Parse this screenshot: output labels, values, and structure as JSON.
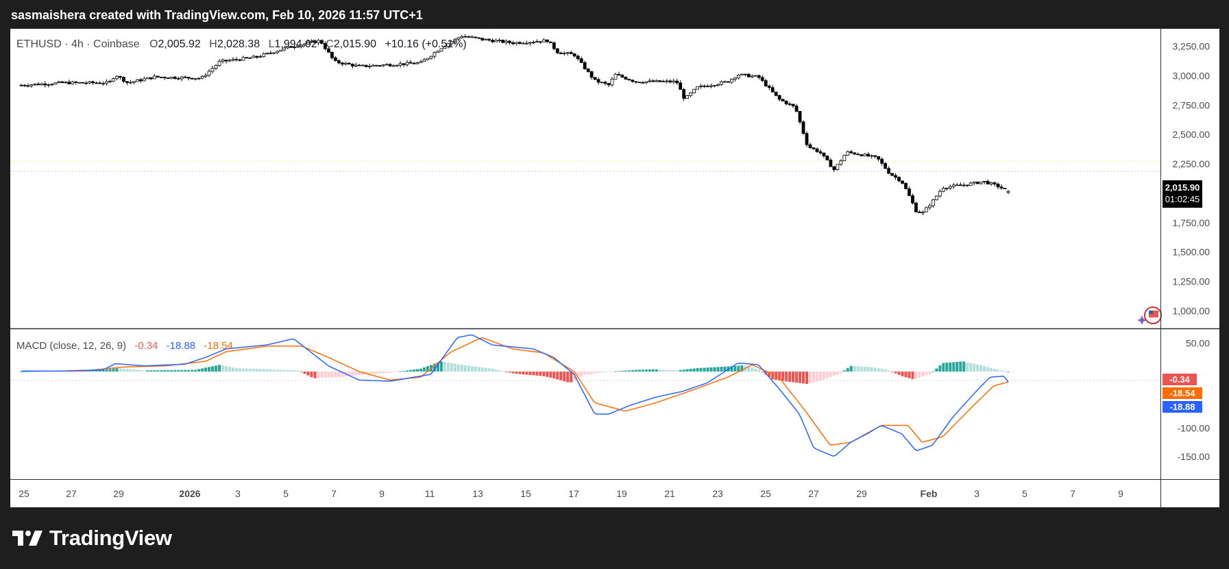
{
  "header": {
    "caption": "sasmaishera created with TradingView.com, Feb 10, 2026 11:57 UTC+1"
  },
  "legend": {
    "symbol": "ETHUSD",
    "sep1": " · ",
    "interval": "4h",
    "sep2": " · ",
    "exchange": "Coinbase",
    "open_label": "O",
    "open": "2,005.92",
    "high_label": "H",
    "high": "2,028.38",
    "low_label": "L",
    "low": "1,994.02",
    "close_label": "C",
    "close": "2,015.90",
    "change": "+10.16 (+0.51%)"
  },
  "last_price": {
    "value": "2,015.90",
    "countdown": "01:02:45"
  },
  "macd_legend": {
    "label": "MACD (close, 12, 26, 9)",
    "histogram": "-0.34",
    "macd": "-18.88",
    "signal": "-18.54"
  },
  "brand": {
    "name": "TradingView"
  },
  "colors": {
    "up": "#26a69a",
    "down": "#ef5350",
    "up_light": "#b2dfdb",
    "down_light": "#ffcdd2",
    "macd_line": "#2962ff",
    "signal_line": "#ff6d00",
    "candle": "#000000",
    "last_price_bg": "#000000",
    "grid": "#e0e3eb",
    "text": "#131722",
    "label_text": "#4a4a4a"
  },
  "chart_data": [
    {
      "type": "candlestick",
      "symbol": "ETHUSD",
      "interval": "4h",
      "exchange": "Coinbase",
      "price_axis_ticks": [
        "3,250.00",
        "3,000.00",
        "2,750.00",
        "2,500.00",
        "2,250.00",
        "1,750.00",
        "1,500.00",
        "1,250.00",
        "1,000.00"
      ],
      "price_axis_values": [
        3250,
        3000,
        2750,
        2500,
        2250,
        1750,
        1500,
        1250,
        1000
      ],
      "ylim": [
        850,
        3400
      ],
      "time_axis_labels": [
        "25",
        "27",
        "29",
        "2026",
        "3",
        "5",
        "7",
        "9",
        "11",
        "13",
        "15",
        "17",
        "19",
        "21",
        "23",
        "25",
        "27",
        "29",
        "Feb",
        "3",
        "5",
        "7",
        "9"
      ],
      "close_path": [
        {
          "t": 0,
          "c": 2920
        },
        {
          "t": 2,
          "c": 2940
        },
        {
          "t": 4.3,
          "c": 2940
        },
        {
          "t": 4.6,
          "c": 3010
        },
        {
          "t": 5.2,
          "c": 2940
        },
        {
          "t": 6.5,
          "c": 2990
        },
        {
          "t": 8.8,
          "c": 2980
        },
        {
          "t": 9.7,
          "c": 3120
        },
        {
          "t": 11.5,
          "c": 3160
        },
        {
          "t": 13,
          "c": 3240
        },
        {
          "t": 14.6,
          "c": 3300
        },
        {
          "t": 15.3,
          "c": 3120
        },
        {
          "t": 16.5,
          "c": 3080
        },
        {
          "t": 17.5,
          "c": 3090
        },
        {
          "t": 19.5,
          "c": 3110
        },
        {
          "t": 20.6,
          "c": 3250
        },
        {
          "t": 21.5,
          "c": 3340
        },
        {
          "t": 22.5,
          "c": 3310
        },
        {
          "t": 24,
          "c": 3280
        },
        {
          "t": 25.7,
          "c": 3300
        },
        {
          "t": 26.2,
          "c": 3200
        },
        {
          "t": 27,
          "c": 3180
        },
        {
          "t": 28,
          "c": 2960
        },
        {
          "t": 28.7,
          "c": 2920
        },
        {
          "t": 29,
          "c": 3010
        },
        {
          "t": 30,
          "c": 2950
        },
        {
          "t": 32,
          "c": 2950
        },
        {
          "t": 32.4,
          "c": 2800
        },
        {
          "t": 33,
          "c": 2900
        },
        {
          "t": 34.5,
          "c": 2950
        },
        {
          "t": 35,
          "c": 3010
        },
        {
          "t": 36,
          "c": 2990
        },
        {
          "t": 37,
          "c": 2800
        },
        {
          "t": 37.8,
          "c": 2730
        },
        {
          "t": 38,
          "c": 2620
        },
        {
          "t": 38.4,
          "c": 2400
        },
        {
          "t": 39,
          "c": 2350
        },
        {
          "t": 39.7,
          "c": 2200
        },
        {
          "t": 40.3,
          "c": 2350
        },
        {
          "t": 41,
          "c": 2330
        },
        {
          "t": 41.8,
          "c": 2300
        },
        {
          "t": 42.4,
          "c": 2170
        },
        {
          "t": 43,
          "c": 2100
        },
        {
          "t": 43.3,
          "c": 2000
        },
        {
          "t": 43.7,
          "c": 1850
        },
        {
          "t": 44,
          "c": 1830
        },
        {
          "t": 44.5,
          "c": 1930
        },
        {
          "t": 45,
          "c": 2050
        },
        {
          "t": 46,
          "c": 2070
        },
        {
          "t": 47,
          "c": 2100
        },
        {
          "t": 47.7,
          "c": 2060
        },
        {
          "t": 48.2,
          "c": 2015.9
        }
      ],
      "last_candle": {
        "open": 2005.92,
        "high": 2028.38,
        "low": 1994.02,
        "close": 2015.9
      }
    },
    {
      "type": "macd",
      "title": "MACD (close, 12, 26, 9)",
      "axis_ticks": [
        "50.00",
        "-100.00",
        "-150.00"
      ],
      "axis_values": [
        50,
        -100,
        -150
      ],
      "ylim": [
        -190,
        75
      ],
      "macd_path": [
        {
          "t": 0,
          "v": 1
        },
        {
          "t": 2,
          "v": 1
        },
        {
          "t": 4,
          "v": 3
        },
        {
          "t": 4.6,
          "v": 14
        },
        {
          "t": 6,
          "v": 10
        },
        {
          "t": 8,
          "v": 13
        },
        {
          "t": 9,
          "v": 25
        },
        {
          "t": 10,
          "v": 40
        },
        {
          "t": 12,
          "v": 47
        },
        {
          "t": 13.3,
          "v": 58
        },
        {
          "t": 15,
          "v": 10
        },
        {
          "t": 16.5,
          "v": -15
        },
        {
          "t": 18,
          "v": -17
        },
        {
          "t": 20,
          "v": -5
        },
        {
          "t": 20.5,
          "v": 20
        },
        {
          "t": 21.3,
          "v": 60
        },
        {
          "t": 22,
          "v": 65
        },
        {
          "t": 23,
          "v": 47
        },
        {
          "t": 25,
          "v": 40
        },
        {
          "t": 26,
          "v": 25
        },
        {
          "t": 27,
          "v": -5
        },
        {
          "t": 28,
          "v": -75
        },
        {
          "t": 28.7,
          "v": -75
        },
        {
          "t": 29.7,
          "v": -60
        },
        {
          "t": 31,
          "v": -45
        },
        {
          "t": 32.3,
          "v": -35
        },
        {
          "t": 33.5,
          "v": -20
        },
        {
          "t": 35,
          "v": 15
        },
        {
          "t": 36,
          "v": 12
        },
        {
          "t": 37,
          "v": -30
        },
        {
          "t": 38,
          "v": -75
        },
        {
          "t": 38.7,
          "v": -135
        },
        {
          "t": 39.7,
          "v": -150
        },
        {
          "t": 40.5,
          "v": -125
        },
        {
          "t": 41.3,
          "v": -110
        },
        {
          "t": 42,
          "v": -95
        },
        {
          "t": 43,
          "v": -110
        },
        {
          "t": 43.7,
          "v": -140
        },
        {
          "t": 44.5,
          "v": -130
        },
        {
          "t": 45.5,
          "v": -80
        },
        {
          "t": 46.5,
          "v": -40
        },
        {
          "t": 47.3,
          "v": -10
        },
        {
          "t": 48,
          "v": -8
        },
        {
          "t": 48.2,
          "v": -18.88
        }
      ],
      "signal_path": [
        {
          "t": 0,
          "v": 1
        },
        {
          "t": 3,
          "v": 1
        },
        {
          "t": 5,
          "v": 8
        },
        {
          "t": 7,
          "v": 10
        },
        {
          "t": 9,
          "v": 18
        },
        {
          "t": 10,
          "v": 35
        },
        {
          "t": 12,
          "v": 45
        },
        {
          "t": 13.7,
          "v": 45
        },
        {
          "t": 15,
          "v": 25
        },
        {
          "t": 16.5,
          "v": 0
        },
        {
          "t": 18,
          "v": -15
        },
        {
          "t": 19.5,
          "v": -10
        },
        {
          "t": 21,
          "v": 35
        },
        {
          "t": 22.5,
          "v": 60
        },
        {
          "t": 24,
          "v": 40
        },
        {
          "t": 25.5,
          "v": 33
        },
        {
          "t": 27,
          "v": 0
        },
        {
          "t": 28,
          "v": -55
        },
        {
          "t": 29.5,
          "v": -70
        },
        {
          "t": 31,
          "v": -55
        },
        {
          "t": 33,
          "v": -30
        },
        {
          "t": 34.5,
          "v": -10
        },
        {
          "t": 35.7,
          "v": 12
        },
        {
          "t": 37,
          "v": -10
        },
        {
          "t": 38.3,
          "v": -70
        },
        {
          "t": 39.5,
          "v": -130
        },
        {
          "t": 40.5,
          "v": -125
        },
        {
          "t": 42,
          "v": -95
        },
        {
          "t": 43.3,
          "v": -95
        },
        {
          "t": 44,
          "v": -125
        },
        {
          "t": 45,
          "v": -115
        },
        {
          "t": 46.5,
          "v": -60
        },
        {
          "t": 47.5,
          "v": -25
        },
        {
          "t": 48.2,
          "v": -18.54
        }
      ],
      "histogram_path": [
        {
          "t": 0,
          "v": 0
        },
        {
          "t": 4,
          "v": 3
        },
        {
          "t": 4.7,
          "v": 6
        },
        {
          "t": 6,
          "v": 2
        },
        {
          "t": 8.5,
          "v": 3
        },
        {
          "t": 9.7,
          "v": 12
        },
        {
          "t": 10.5,
          "v": 6
        },
        {
          "t": 12,
          "v": 4
        },
        {
          "t": 13.5,
          "v": 2
        },
        {
          "t": 14.3,
          "v": -12
        },
        {
          "t": 15.5,
          "v": -10
        },
        {
          "t": 16.5,
          "v": -6
        },
        {
          "t": 18,
          "v": -2
        },
        {
          "t": 19.5,
          "v": 5
        },
        {
          "t": 20.5,
          "v": 18
        },
        {
          "t": 21.5,
          "v": 12
        },
        {
          "t": 23,
          "v": 5
        },
        {
          "t": 24,
          "v": -3
        },
        {
          "t": 24.5,
          "v": -5
        },
        {
          "t": 25.5,
          "v": -8
        },
        {
          "t": 26,
          "v": -12
        },
        {
          "t": 26.8,
          "v": -20
        },
        {
          "t": 27.5,
          "v": -6
        },
        {
          "t": 28.5,
          "v": -1
        },
        {
          "t": 30,
          "v": 3
        },
        {
          "t": 31,
          "v": 4
        },
        {
          "t": 32,
          "v": 2
        },
        {
          "t": 33,
          "v": 6
        },
        {
          "t": 34.5,
          "v": 9
        },
        {
          "t": 35.3,
          "v": 11
        },
        {
          "t": 36,
          "v": 4
        },
        {
          "t": 36.7,
          "v": -14
        },
        {
          "t": 37.5,
          "v": -18
        },
        {
          "t": 38.4,
          "v": -22
        },
        {
          "t": 39.2,
          "v": -14
        },
        {
          "t": 40,
          "v": -3
        },
        {
          "t": 40.5,
          "v": 10
        },
        {
          "t": 41.5,
          "v": 8
        },
        {
          "t": 42.3,
          "v": 3
        },
        {
          "t": 43,
          "v": -8
        },
        {
          "t": 43.6,
          "v": -14
        },
        {
          "t": 44.4,
          "v": -4
        },
        {
          "t": 45,
          "v": 15
        },
        {
          "t": 46,
          "v": 18
        },
        {
          "t": 47,
          "v": 10
        },
        {
          "t": 47.6,
          "v": 4
        },
        {
          "t": 48.2,
          "v": -0.34
        }
      ]
    }
  ]
}
